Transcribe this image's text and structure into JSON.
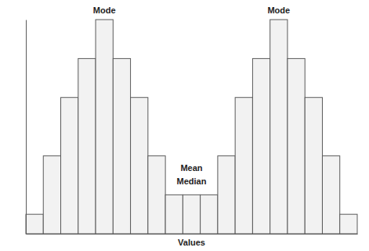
{
  "chart_data": {
    "type": "histogram",
    "x_label": "Values",
    "bins": [
      0,
      1,
      2,
      3,
      4,
      5,
      6,
      7,
      8,
      9,
      10,
      11,
      12,
      13,
      14,
      15,
      16,
      17,
      18,
      19
    ],
    "values": [
      1,
      4,
      7,
      9,
      11,
      9,
      7,
      4,
      2,
      2,
      2,
      4,
      7,
      9,
      11,
      9,
      7,
      4,
      1
    ],
    "color": "#f2f2f2",
    "xlim": [
      0,
      19
    ],
    "ylim": [
      0,
      11
    ],
    "tick_labels": false,
    "grid": false,
    "annotations": [
      "Mode",
      "Mode",
      "Mean",
      "Median"
    ]
  }
}
